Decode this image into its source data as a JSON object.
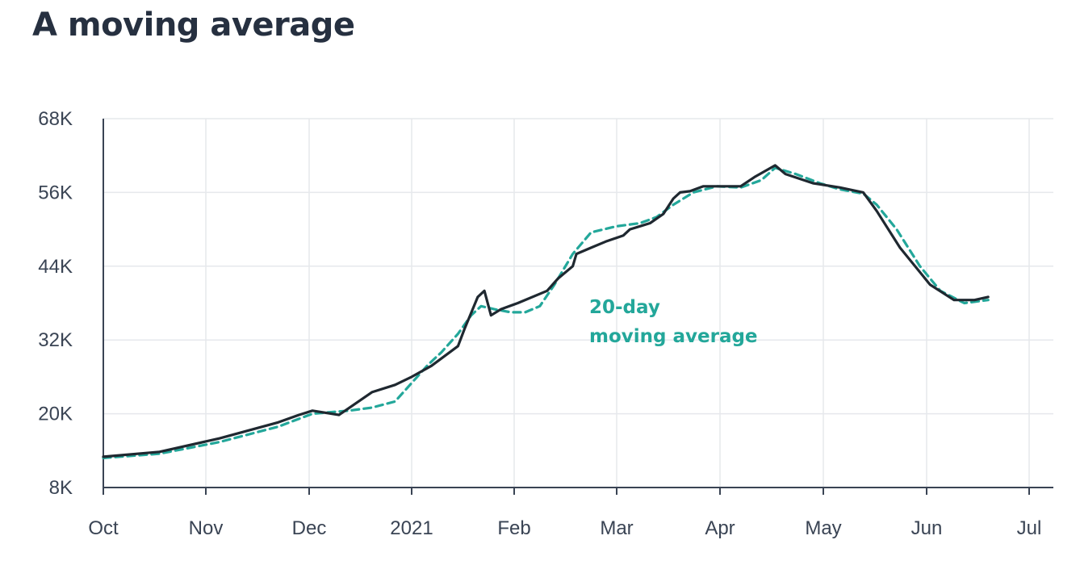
{
  "title": "A moving average",
  "chart_data": {
    "type": "line",
    "title": "A moving average",
    "xlabel": "",
    "ylabel": "",
    "x_ticks": [
      "Oct",
      "Nov",
      "Dec",
      "2021",
      "Feb",
      "Mar",
      "Apr",
      "May",
      "Jun",
      "Jul"
    ],
    "y_ticks": [
      "8K",
      "20K",
      "32K",
      "44K",
      "56K",
      "68K"
    ],
    "ylim": [
      8000,
      68000
    ],
    "xlim": [
      "2020-10-01",
      "2021-07-01"
    ],
    "grid": true,
    "colors": {
      "series": "#1f2830",
      "moving_average": "#23a79a",
      "grid": "#e6e8ec",
      "axis": "#3a4454"
    },
    "annotation": {
      "lines": [
        "20-day",
        "moving average"
      ]
    },
    "series": [
      {
        "values": [
          [
            "2020-10-01",
            13000
          ],
          [
            "2020-10-18",
            13800
          ],
          [
            "2020-11-05",
            16000
          ],
          [
            "2020-11-22",
            18600
          ],
          [
            "2020-11-28",
            19800
          ],
          [
            "2020-12-02",
            20500
          ],
          [
            "2020-12-10",
            19800
          ],
          [
            "2020-12-20",
            23500
          ],
          [
            "2020-12-27",
            24700
          ],
          [
            "2021-01-01",
            26000
          ],
          [
            "2021-01-07",
            27800
          ],
          [
            "2021-01-15",
            31000
          ],
          [
            "2021-01-17",
            33800
          ],
          [
            "2021-01-21",
            39000
          ],
          [
            "2021-01-23",
            40000
          ],
          [
            "2021-01-25",
            36000
          ],
          [
            "2021-01-28",
            37000
          ],
          [
            "2021-02-02",
            38000
          ],
          [
            "2021-02-10",
            40000
          ],
          [
            "2021-02-13",
            42000
          ],
          [
            "2021-02-17",
            44000
          ],
          [
            "2021-02-18",
            46000
          ],
          [
            "2021-02-22",
            47000
          ],
          [
            "2021-02-26",
            48000
          ],
          [
            "2021-03-03",
            49000
          ],
          [
            "2021-03-05",
            50000
          ],
          [
            "2021-03-08",
            50500
          ],
          [
            "2021-03-11",
            51000
          ],
          [
            "2021-03-15",
            52500
          ],
          [
            "2021-03-18",
            55000
          ],
          [
            "2021-03-20",
            56000
          ],
          [
            "2021-03-23",
            56200
          ],
          [
            "2021-03-27",
            57000
          ],
          [
            "2021-04-02",
            57000
          ],
          [
            "2021-04-07",
            57000
          ],
          [
            "2021-04-11",
            58500
          ],
          [
            "2021-04-17",
            60400
          ],
          [
            "2021-04-20",
            59000
          ],
          [
            "2021-04-28",
            57500
          ],
          [
            "2021-05-06",
            56800
          ],
          [
            "2021-05-13",
            56000
          ],
          [
            "2021-05-17",
            53000
          ],
          [
            "2021-05-24",
            47000
          ],
          [
            "2021-06-02",
            41000
          ],
          [
            "2021-06-09",
            38500
          ],
          [
            "2021-06-15",
            38500
          ],
          [
            "2021-06-19",
            39000
          ]
        ]
      },
      {
        "values": [
          [
            "2020-10-01",
            12800
          ],
          [
            "2020-10-18",
            13500
          ],
          [
            "2020-11-05",
            15400
          ],
          [
            "2020-11-22",
            17900
          ],
          [
            "2020-12-02",
            20000
          ],
          [
            "2020-12-13",
            20500
          ],
          [
            "2020-12-20",
            21000
          ],
          [
            "2020-12-27",
            22000
          ],
          [
            "2021-01-01",
            25000
          ],
          [
            "2021-01-06",
            28000
          ],
          [
            "2021-01-10",
            30000
          ],
          [
            "2021-01-15",
            33000
          ],
          [
            "2021-01-19",
            36000
          ],
          [
            "2021-01-22",
            37500
          ],
          [
            "2021-01-26",
            37000
          ],
          [
            "2021-01-31",
            36500
          ],
          [
            "2021-02-04",
            36500
          ],
          [
            "2021-02-08",
            37500
          ],
          [
            "2021-02-12",
            41000
          ],
          [
            "2021-02-17",
            46000
          ],
          [
            "2021-02-22",
            49500
          ],
          [
            "2021-03-01",
            50500
          ],
          [
            "2021-03-08",
            51000
          ],
          [
            "2021-03-13",
            52000
          ],
          [
            "2021-03-18",
            54000
          ],
          [
            "2021-03-24",
            56000
          ],
          [
            "2021-03-31",
            57000
          ],
          [
            "2021-04-07",
            56800
          ],
          [
            "2021-04-13",
            58000
          ],
          [
            "2021-04-17",
            60000
          ],
          [
            "2021-04-23",
            59000
          ],
          [
            "2021-04-30",
            57500
          ],
          [
            "2021-05-06",
            56500
          ],
          [
            "2021-05-13",
            55800
          ],
          [
            "2021-05-17",
            54000
          ],
          [
            "2021-05-23",
            50000
          ],
          [
            "2021-05-30",
            44000
          ],
          [
            "2021-06-05",
            40000
          ],
          [
            "2021-06-12",
            38000
          ],
          [
            "2021-06-19",
            38500
          ]
        ]
      }
    ]
  }
}
